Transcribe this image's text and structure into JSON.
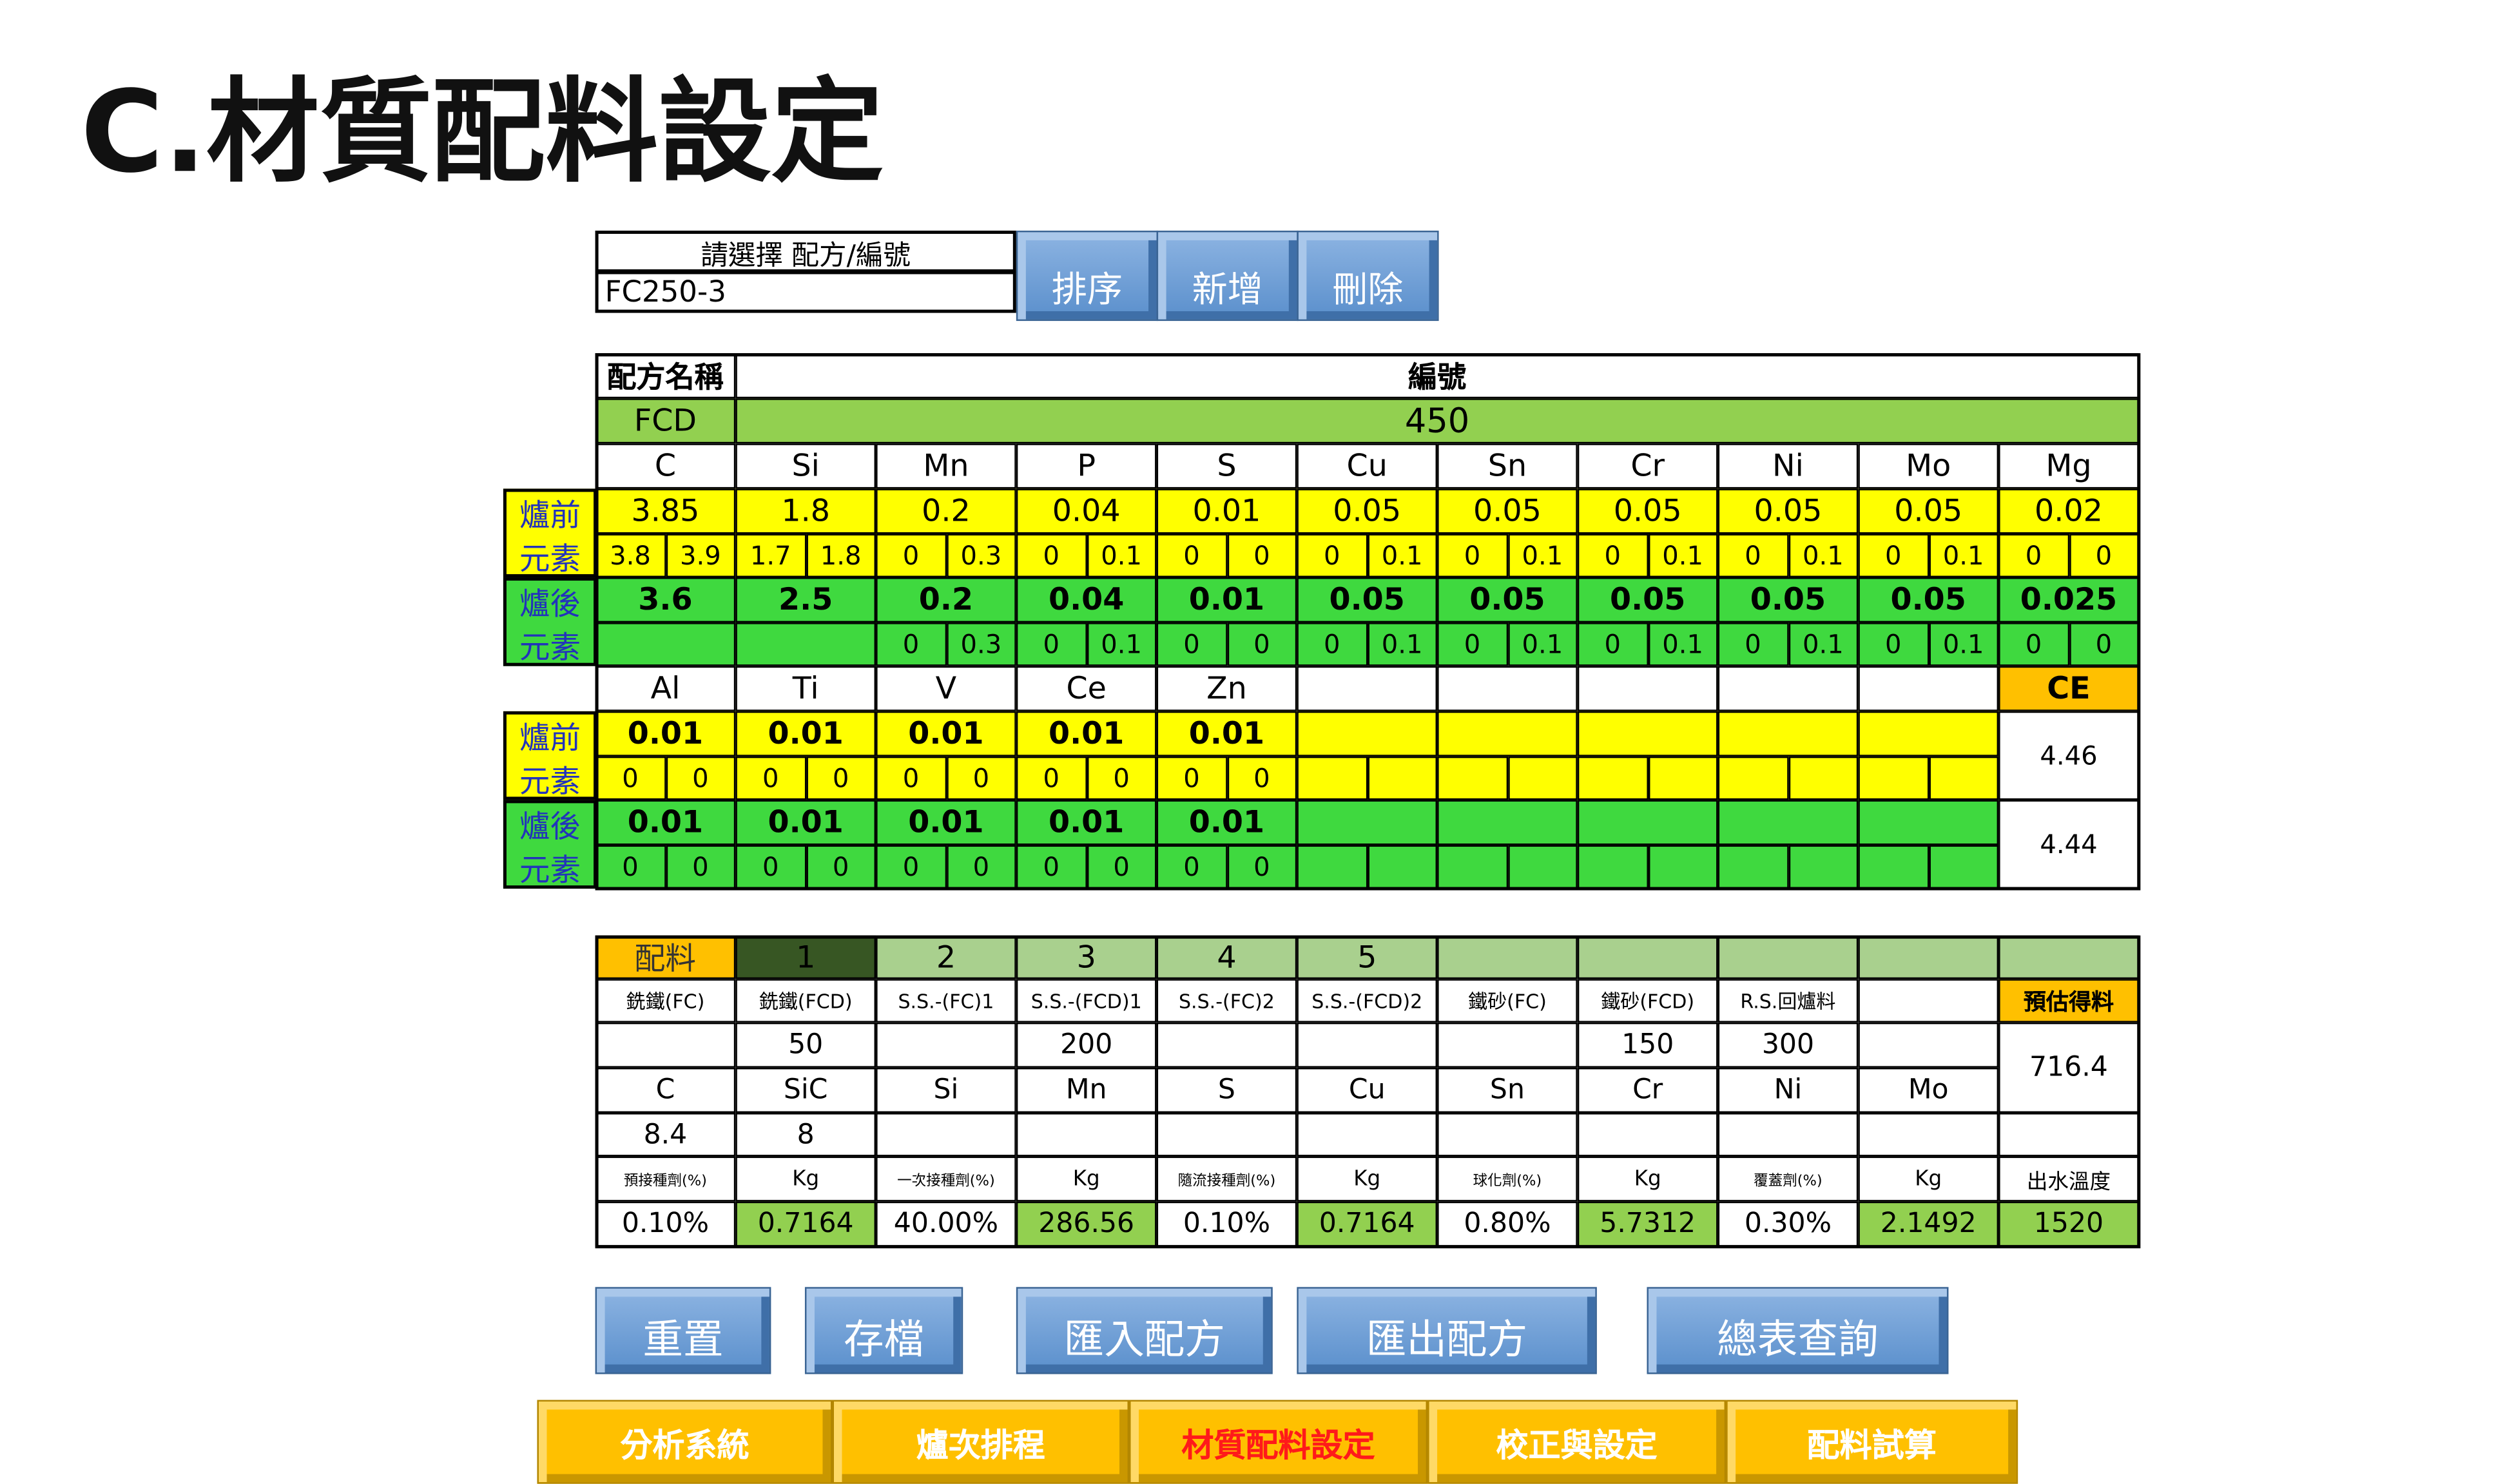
{
  "header": {
    "title": "C.材質配料設定"
  },
  "selector": {
    "label": "請選擇 配方/編號",
    "value": "FC250-3",
    "buttons": [
      "排序",
      "新增",
      "刪除"
    ]
  },
  "composition": {
    "name_label": "配方名稱",
    "number_label": "編號",
    "name": "FCD",
    "number": 450,
    "before_label": [
      "爐前",
      "元素"
    ],
    "after_label": [
      "爐後",
      "元素"
    ],
    "elements": [
      "C",
      "Si",
      "Mn",
      "P",
      "S",
      "Cu",
      "Sn",
      "Cr",
      "Ni",
      "Mo",
      "Mg"
    ],
    "before": [
      3.85,
      1.8,
      0.2,
      0.04,
      0.01,
      0.05,
      0.05,
      0.05,
      0.05,
      0.05,
      0.02
    ],
    "before_ranges": [
      [
        3.8,
        3.9
      ],
      [
        1.7,
        1.8
      ],
      [
        0,
        0.3
      ],
      [
        0,
        0.1
      ],
      [
        0,
        0
      ],
      [
        0,
        0.1
      ],
      [
        0,
        0.1
      ],
      [
        0,
        0.1
      ],
      [
        0,
        0.1
      ],
      [
        0,
        0.1
      ],
      [
        0,
        0
      ]
    ],
    "after": [
      3.6,
      2.5,
      0.2,
      0.04,
      0.01,
      0.05,
      0.05,
      0.05,
      0.05,
      0.05,
      0.025
    ],
    "after_ranges": [
      null,
      null,
      [
        0,
        0.3
      ],
      [
        0,
        0.1
      ],
      [
        0,
        0
      ],
      [
        0,
        0.1
      ],
      [
        0,
        0.1
      ],
      [
        0,
        0.1
      ],
      [
        0,
        0.1
      ],
      [
        0,
        0.1
      ],
      [
        0,
        0
      ]
    ],
    "elements2": [
      "Al",
      "Ti",
      "V",
      "Ce",
      "Zn"
    ],
    "before2": [
      0.01,
      0.01,
      0.01,
      0.01,
      0.01
    ],
    "before2_ranges": [
      [
        0,
        0
      ],
      [
        0,
        0
      ],
      [
        0,
        0
      ],
      [
        0,
        0
      ],
      [
        0,
        0
      ]
    ],
    "after2": [
      0.01,
      0.01,
      0.01,
      0.01,
      0.01
    ],
    "after2_ranges": [
      [
        0,
        0
      ],
      [
        0,
        0
      ],
      [
        0,
        0
      ],
      [
        0,
        0
      ],
      [
        0,
        0
      ]
    ],
    "ce_label": "CE",
    "ce_before": 4.46,
    "ce_after": 4.44
  },
  "charge": {
    "label": "配料",
    "slots": [
      1,
      2,
      3,
      4,
      5
    ],
    "materials": [
      "銑鐵(FC)",
      "銑鐵(FCD)",
      "S.S.-(FC)1",
      "S.S.-(FCD)1",
      "S.S.-(FC)2",
      "S.S.-(FCD)2",
      "鐵砂(FC)",
      "鐵砂(FCD)",
      "R.S.回爐料",
      null
    ],
    "amounts": [
      null,
      50,
      null,
      200,
      null,
      null,
      null,
      150,
      300,
      null
    ],
    "estimate_label": "預估得料",
    "estimate": 716.4,
    "additives": [
      "C",
      "SiC",
      "Si",
      "Mn",
      "S",
      "Cu",
      "Sn",
      "Cr",
      "Ni",
      "Mo"
    ],
    "additive_amounts": [
      8.4,
      8,
      null,
      null,
      null,
      null,
      null,
      null,
      null,
      null
    ],
    "param_labels": [
      "預接種劑(%)",
      "Kg",
      "一次接種劑(%)",
      "Kg",
      "隨流接種劑(%)",
      "Kg",
      "球化劑(%)",
      "Kg",
      "覆蓋劑(%)",
      "Kg",
      "出水溫度"
    ],
    "param_values": [
      "0.10%",
      0.7164,
      "40.00%",
      286.56,
      "0.10%",
      0.7164,
      "0.80%",
      5.7312,
      "0.30%",
      2.1492,
      1520
    ]
  },
  "actions": [
    "重置",
    "存檔",
    "匯入配方",
    "匯出配方",
    "總表查詢"
  ],
  "nav": {
    "items": [
      "分析系統",
      "爐次排程",
      "材質配料設定",
      "校正與設定",
      "配料試算"
    ],
    "active": 2
  }
}
